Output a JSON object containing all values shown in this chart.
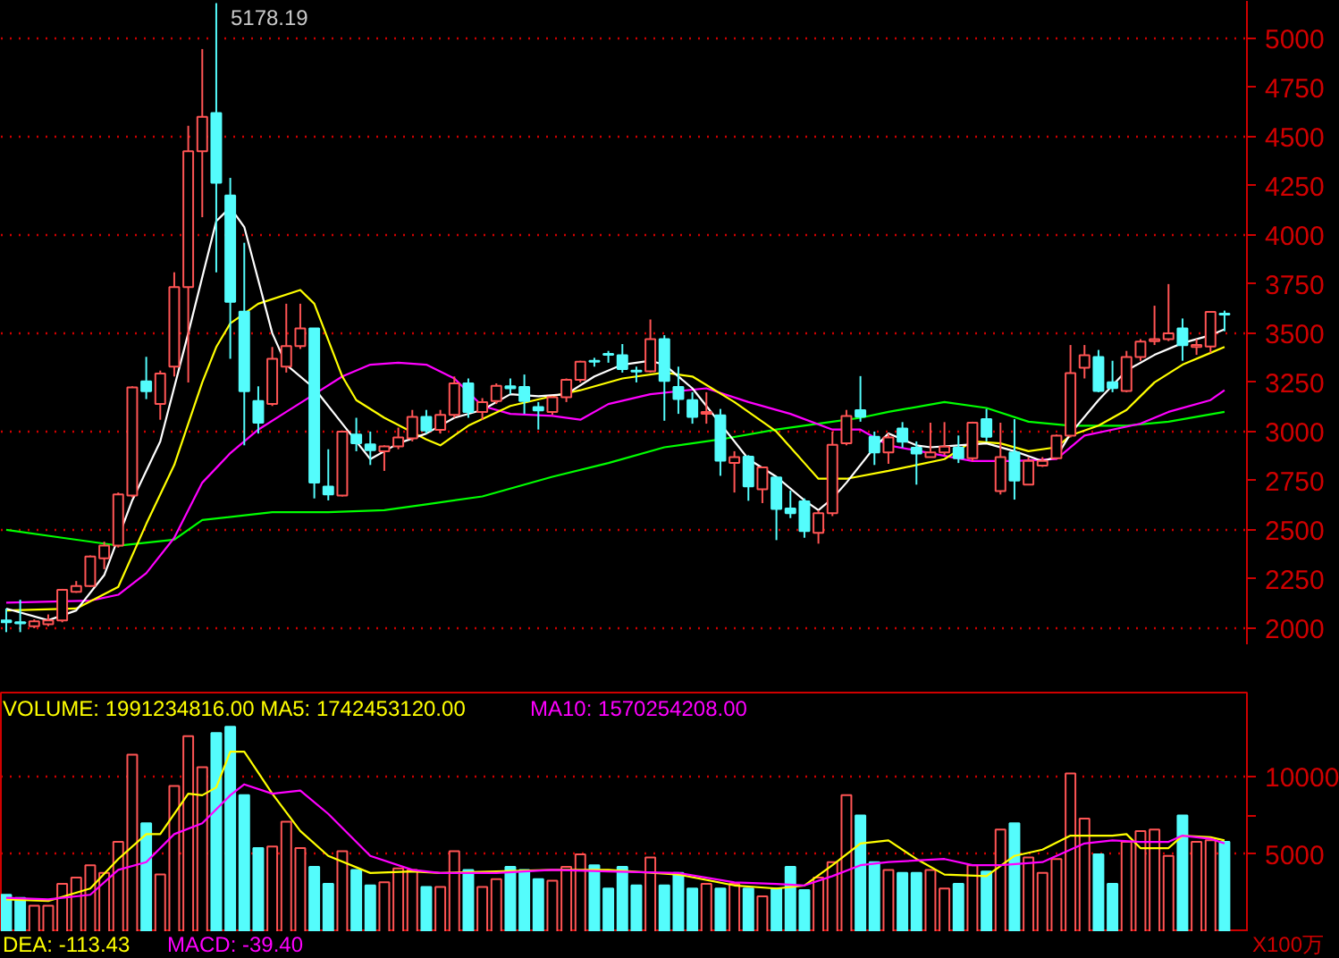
{
  "chart_data": [
    {
      "type": "candlestick",
      "categories": [
        null,
        null,
        null,
        null,
        null,
        null,
        null,
        null,
        null,
        null,
        null,
        null,
        null,
        null,
        null,
        null,
        null,
        null,
        null,
        null,
        null,
        null,
        null,
        null,
        null,
        null,
        null,
        null,
        null,
        null,
        null,
        null,
        null,
        null,
        null,
        null,
        null,
        null,
        null,
        null,
        null,
        null,
        null,
        null,
        null,
        null,
        null,
        null,
        null,
        null,
        null,
        null,
        null,
        null,
        null,
        null,
        null,
        null,
        null,
        null,
        null,
        null,
        null,
        null,
        null,
        null,
        null,
        null,
        null,
        null,
        null,
        null,
        null,
        null,
        null,
        null,
        null,
        null,
        null,
        null,
        null,
        null,
        null,
        null,
        null,
        null,
        null,
        null
      ],
      "ohlc": [
        [
          2040,
          2100,
          1980,
          2030
        ],
        [
          2030,
          2145,
          1980,
          2025
        ],
        [
          2010,
          2045,
          2000,
          2035
        ],
        [
          2020,
          2070,
          2010,
          2040
        ],
        [
          2040,
          2200,
          2030,
          2195
        ],
        [
          2185,
          2240,
          2180,
          2215
        ],
        [
          2215,
          2370,
          2210,
          2365
        ],
        [
          2355,
          2440,
          2300,
          2420
        ],
        [
          2420,
          2690,
          2410,
          2680
        ],
        [
          2675,
          3230,
          2665,
          3225
        ],
        [
          3255,
          3380,
          3165,
          3205
        ],
        [
          3140,
          3310,
          3060,
          3295
        ],
        [
          3330,
          3810,
          3280,
          3735
        ],
        [
          3735,
          4555,
          3250,
          4425
        ],
        [
          4425,
          4945,
          4090,
          4600
        ],
        [
          4620,
          5178.19,
          3810,
          4265
        ],
        [
          4200,
          4290,
          3370,
          3660
        ],
        [
          3610,
          3960,
          2930,
          3205
        ],
        [
          3155,
          3230,
          2990,
          3045
        ],
        [
          3140,
          3430,
          3130,
          3370
        ],
        [
          3330,
          3650,
          3300,
          3435
        ],
        [
          3435,
          3650,
          3420,
          3525
        ],
        [
          3525,
          3525,
          2660,
          2740
        ],
        [
          2720,
          2910,
          2650,
          2680
        ],
        [
          2675,
          3005,
          2670,
          3000
        ],
        [
          2985,
          3070,
          2900,
          2940
        ],
        [
          2935,
          3000,
          2830,
          2905
        ],
        [
          2900,
          2930,
          2800,
          2925
        ],
        [
          2925,
          3020,
          2910,
          2970
        ],
        [
          2965,
          3110,
          2950,
          3075
        ],
        [
          3075,
          3110,
          2990,
          3005
        ],
        [
          3009,
          3110,
          2990,
          3085
        ],
        [
          3085,
          3280,
          3070,
          3245
        ],
        [
          3245,
          3270,
          3070,
          3100
        ],
        [
          3100,
          3170,
          3060,
          3150
        ],
        [
          3155,
          3245,
          3140,
          3233
        ],
        [
          3230,
          3270,
          3190,
          3220
        ],
        [
          3227,
          3290,
          3090,
          3155
        ],
        [
          3124,
          3150,
          3010,
          3108
        ],
        [
          3100,
          3180,
          3085,
          3175
        ],
        [
          3175,
          3270,
          3150,
          3263
        ],
        [
          3263,
          3360,
          3250,
          3355
        ],
        [
          3360,
          3375,
          3330,
          3355
        ],
        [
          3395,
          3410,
          3350,
          3390
        ],
        [
          3388,
          3445,
          3300,
          3318
        ],
        [
          3310,
          3330,
          3250,
          3305
        ],
        [
          3306,
          3570,
          3300,
          3470
        ],
        [
          3470,
          3490,
          3055,
          3257
        ],
        [
          3227,
          3330,
          3090,
          3166
        ],
        [
          3160,
          3200,
          3040,
          3075
        ],
        [
          3090,
          3200,
          3040,
          3100
        ],
        [
          3082,
          3115,
          2775,
          2852
        ],
        [
          2840,
          2900,
          2690,
          2870
        ],
        [
          2872,
          2880,
          2648,
          2721
        ],
        [
          2706,
          2818,
          2636,
          2818
        ],
        [
          2767,
          2767,
          2448,
          2606
        ],
        [
          2609,
          2700,
          2560,
          2585
        ],
        [
          2645,
          2660,
          2460,
          2494
        ],
        [
          2485,
          2600,
          2430,
          2585
        ],
        [
          2585,
          3000,
          2570,
          2933
        ],
        [
          2940,
          3110,
          2930,
          3079
        ],
        [
          3109,
          3282,
          3050,
          3076
        ],
        [
          2973,
          3000,
          2830,
          2894
        ],
        [
          2894,
          2990,
          2836,
          2970
        ],
        [
          3015,
          3048,
          2918,
          2948
        ],
        [
          2918,
          2950,
          2730,
          2888
        ],
        [
          2870,
          3045,
          2870,
          2894
        ],
        [
          2894,
          3048,
          2880,
          2924
        ],
        [
          2918,
          2980,
          2840,
          2864
        ],
        [
          2864,
          3050,
          2850,
          3045
        ],
        [
          3063,
          3115,
          2950,
          2973
        ],
        [
          2697,
          3045,
          2680,
          2870
        ],
        [
          2894,
          3063,
          2654,
          2751
        ],
        [
          2730,
          2870,
          2727,
          2851
        ],
        [
          2827,
          2870,
          2820,
          2851
        ],
        [
          2864,
          2985,
          2860,
          2979
        ],
        [
          2979,
          3440,
          2970,
          3297
        ],
        [
          3324,
          3440,
          3270,
          3388
        ],
        [
          3379,
          3415,
          3200,
          3206
        ],
        [
          3251,
          3360,
          3200,
          3221
        ],
        [
          3206,
          3410,
          3200,
          3379
        ],
        [
          3379,
          3470,
          3360,
          3457
        ],
        [
          3460,
          3640,
          3440,
          3470
        ],
        [
          3470,
          3750,
          3460,
          3500
        ],
        [
          3524,
          3575,
          3360,
          3439
        ],
        [
          3430,
          3470,
          3390,
          3440
        ],
        [
          3433,
          3609,
          3400,
          3609
        ],
        [
          3600,
          3615,
          3510,
          3595
        ]
      ],
      "colors": [
        "#54fcfc",
        "#54fcfc",
        "#ff5454",
        "#ff5454",
        "#ff5454",
        "#ff5454",
        "#ff5454",
        "#ff5454",
        "#ff5454",
        "#ff5454",
        "#54fcfc",
        "#ff5454",
        "#ff5454",
        "#ff5454",
        "#ff5454",
        "#54fcfc",
        "#54fcfc",
        "#54fcfc",
        "#54fcfc",
        "#ff5454",
        "#ff5454",
        "#ff5454",
        "#54fcfc",
        "#54fcfc",
        "#ff5454",
        "#54fcfc",
        "#54fcfc",
        "#ff5454",
        "#ff5454",
        "#ff5454",
        "#54fcfc",
        "#ff5454",
        "#ff5454",
        "#54fcfc",
        "#ff5454",
        "#ff5454",
        "#54fcfc",
        "#54fcfc",
        "#54fcfc",
        "#ff5454",
        "#ff5454",
        "#ff5454",
        "#54fcfc",
        "#54fcfc",
        "#54fcfc",
        "#54fcfc",
        "#ff5454",
        "#54fcfc",
        "#54fcfc",
        "#54fcfc",
        "#ff5454",
        "#54fcfc",
        "#ff5454",
        "#54fcfc",
        "#ff5454",
        "#54fcfc",
        "#54fcfc",
        "#54fcfc",
        "#ff5454",
        "#ff5454",
        "#ff5454",
        "#54fcfc",
        "#54fcfc",
        "#ff5454",
        "#54fcfc",
        "#54fcfc",
        "#ff5454",
        "#ff5454",
        "#54fcfc",
        "#ff5454",
        "#54fcfc",
        "#ff5454",
        "#54fcfc",
        "#ff5454",
        "#ff5454",
        "#ff5454",
        "#ff5454",
        "#ff5454",
        "#54fcfc",
        "#54fcfc",
        "#ff5454",
        "#ff5454",
        "#ff5454",
        "#ff5454",
        "#54fcfc",
        "#ff5454",
        "#ff5454",
        "#54fcfc"
      ],
      "series": [
        {
          "type": "line",
          "color": "#00ff00",
          "values": [
            2500,
            null,
            null,
            null,
            2460,
            null,
            null,
            null,
            2420,
            null,
            null,
            null,
            2450,
            null,
            2550,
            null,
            null,
            null,
            null,
            2590,
            null,
            null,
            null,
            2590,
            null,
            null,
            null,
            2600,
            null,
            null,
            2630,
            null,
            null,
            null,
            2670,
            null,
            null,
            null,
            null,
            2770,
            null,
            null,
            null,
            2840,
            null,
            null,
            null,
            2920,
            null,
            null,
            null,
            2960,
            null,
            null,
            null,
            3010,
            null,
            null,
            null,
            3050,
            null,
            3070,
            null,
            3100,
            null,
            null,
            null,
            3150,
            null,
            null,
            3120,
            null,
            null,
            3050,
            null,
            null,
            3030,
            null,
            null,
            null,
            3030,
            null,
            null,
            3050,
            null,
            null,
            null,
            3100
          ]
        },
        {
          "type": "line",
          "color": "#ff00ff",
          "values": [
            2130,
            null,
            null,
            null,
            null,
            null,
            2140,
            null,
            2170,
            null,
            2280,
            null,
            2460,
            null,
            2740,
            null,
            2890,
            null,
            3010,
            null,
            3100,
            null,
            3190,
            null,
            3280,
            null,
            3340,
            null,
            3350,
            null,
            3340,
            null,
            3270,
            null,
            3130,
            null,
            3090,
            null,
            null,
            3080,
            null,
            3060,
            null,
            3140,
            null,
            null,
            3190,
            null,
            null,
            null,
            3220,
            null,
            null,
            3150,
            null,
            null,
            3090,
            null,
            null,
            3010,
            null,
            3010,
            null,
            2930,
            null,
            null,
            2890,
            null,
            null,
            2850,
            null,
            null,
            2850,
            null,
            null,
            2860,
            null,
            2980,
            null,
            3010,
            null,
            3040,
            null,
            3100,
            null,
            null,
            3160,
            3210
          ]
        },
        {
          "type": "line",
          "color": "#ffff00",
          "values": [
            2090,
            null,
            null,
            null,
            null,
            2100,
            null,
            null,
            2210,
            null,
            2530,
            null,
            2830,
            null,
            3250,
            3430,
            3550,
            null,
            3650,
            null,
            null,
            3720,
            3650,
            null,
            3280,
            3160,
            null,
            3070,
            null,
            null,
            2960,
            2930,
            null,
            3030,
            null,
            null,
            3130,
            null,
            null,
            3180,
            null,
            3210,
            null,
            null,
            3270,
            null,
            null,
            3300,
            null,
            3280,
            null,
            null,
            3150,
            null,
            null,
            3000,
            null,
            2840,
            2760,
            null,
            2760,
            null,
            null,
            2800,
            null,
            2830,
            null,
            2860,
            null,
            2950,
            null,
            2940,
            null,
            2900,
            null,
            2920,
            2980,
            null,
            3030,
            null,
            3110,
            null,
            3250,
            null,
            3340,
            null,
            3400,
            3430
          ]
        },
        {
          "type": "line",
          "color": "#ffffff",
          "values": [
            2100,
            null,
            null,
            2040,
            null,
            2090,
            null,
            2270,
            null,
            2650,
            null,
            2950,
            null,
            3500,
            null,
            4070,
            4140,
            4040,
            null,
            3500,
            3340,
            null,
            3220,
            null,
            3040,
            null,
            2860,
            null,
            2940,
            null,
            2990,
            null,
            3070,
            null,
            3110,
            null,
            3190,
            null,
            3180,
            null,
            3190,
            null,
            3280,
            null,
            3340,
            null,
            3360,
            3340,
            null,
            3220,
            null,
            3040,
            null,
            2860,
            null,
            2770,
            null,
            2650,
            2600,
            2660,
            2740,
            null,
            2920,
            2990,
            null,
            2930,
            2920,
            null,
            2930,
            null,
            2940,
            null,
            2900,
            null,
            2850,
            2870,
            2990,
            null,
            3160,
            null,
            3310,
            null,
            3390,
            null,
            3450,
            null,
            3490,
            3520
          ]
        }
      ],
      "ylim": [
        1918,
        5190
      ],
      "yticks": [
        2000,
        2250,
        2500,
        2750,
        3000,
        3250,
        3500,
        3750,
        4000,
        4250,
        4500,
        4750,
        5000
      ],
      "grid": "y",
      "tick_labels": "y",
      "annotations": [
        "5178.19"
      ]
    },
    {
      "type": "bar",
      "categories": [
        null,
        null,
        null,
        null,
        null,
        null,
        null,
        null,
        null,
        null,
        null,
        null,
        null,
        null,
        null,
        null,
        null,
        null,
        null,
        null,
        null,
        null,
        null,
        null,
        null,
        null,
        null,
        null,
        null,
        null,
        null,
        null,
        null,
        null,
        null,
        null,
        null,
        null,
        null,
        null,
        null,
        null,
        null,
        null,
        null,
        null,
        null,
        null,
        null,
        null,
        null,
        null,
        null,
        null,
        null,
        null,
        null,
        null,
        null,
        null,
        null,
        null,
        null,
        null,
        null,
        null,
        null,
        null,
        null,
        null,
        null,
        null,
        null,
        null,
        null,
        null,
        null,
        null,
        null,
        null,
        null,
        null,
        null,
        null,
        null,
        null,
        null,
        null
      ],
      "values": [
        2400,
        2200,
        1700,
        1700,
        3100,
        3500,
        4300,
        3800,
        5800,
        11400,
        7000,
        3700,
        9400,
        12600,
        10600,
        12800,
        13200,
        8800,
        5400,
        5500,
        7100,
        5400,
        4200,
        3100,
        5200,
        4000,
        3000,
        3200,
        4100,
        4000,
        2900,
        2900,
        5200,
        4000,
        2900,
        3400,
        4200,
        4000,
        3400,
        3300,
        4200,
        5000,
        4300,
        2800,
        4200,
        3000,
        4800,
        3000,
        3800,
        2800,
        3100,
        2800,
        3100,
        2800,
        2300,
        2800,
        4200,
        2700,
        3500,
        4500,
        8800,
        7500,
        4500,
        4000,
        3800,
        3800,
        4000,
        2800,
        3100,
        4300,
        3900,
        6600,
        7000,
        4800,
        3800,
        4700,
        10200,
        7300,
        5000,
        3100,
        5800,
        6500,
        6600,
        4900,
        7500,
        5800,
        5900,
        5800
      ],
      "colors": [
        "#54fcfc",
        "#54fcfc",
        "#ff5454",
        "#ff5454",
        "#ff5454",
        "#ff5454",
        "#ff5454",
        "#ff5454",
        "#ff5454",
        "#ff5454",
        "#54fcfc",
        "#ff5454",
        "#ff5454",
        "#ff5454",
        "#ff5454",
        "#54fcfc",
        "#54fcfc",
        "#54fcfc",
        "#54fcfc",
        "#ff5454",
        "#ff5454",
        "#ff5454",
        "#54fcfc",
        "#54fcfc",
        "#ff5454",
        "#54fcfc",
        "#54fcfc",
        "#ff5454",
        "#ff5454",
        "#ff5454",
        "#54fcfc",
        "#ff5454",
        "#ff5454",
        "#54fcfc",
        "#ff5454",
        "#ff5454",
        "#54fcfc",
        "#54fcfc",
        "#54fcfc",
        "#ff5454",
        "#ff5454",
        "#ff5454",
        "#54fcfc",
        "#54fcfc",
        "#54fcfc",
        "#54fcfc",
        "#ff5454",
        "#54fcfc",
        "#54fcfc",
        "#54fcfc",
        "#ff5454",
        "#54fcfc",
        "#ff5454",
        "#54fcfc",
        "#ff5454",
        "#54fcfc",
        "#54fcfc",
        "#54fcfc",
        "#ff5454",
        "#ff5454",
        "#ff5454",
        "#54fcfc",
        "#54fcfc",
        "#ff5454",
        "#54fcfc",
        "#54fcfc",
        "#ff5454",
        "#ff5454",
        "#54fcfc",
        "#ff5454",
        "#54fcfc",
        "#ff5454",
        "#54fcfc",
        "#ff5454",
        "#ff5454",
        "#ff5454",
        "#ff5454",
        "#ff5454",
        "#54fcfc",
        "#54fcfc",
        "#ff5454",
        "#ff5454",
        "#ff5454",
        "#ff5454",
        "#54fcfc",
        "#ff5454",
        "#ff5454",
        "#54fcfc"
      ],
      "series": [
        {
          "type": "line",
          "color": "#ffff00",
          "values": [
            2100,
            null,
            null,
            2000,
            null,
            null,
            2800,
            null,
            4700,
            null,
            6300,
            6300,
            null,
            8900,
            8800,
            9300,
            11600,
            11600,
            null,
            8900,
            null,
            6500,
            null,
            4900,
            null,
            null,
            3800,
            null,
            null,
            3900,
            null,
            3800,
            null,
            null,
            null,
            3900,
            null,
            null,
            null,
            4000,
            null,
            null,
            null,
            4000,
            null,
            null,
            null,
            null,
            3700,
            null,
            null,
            null,
            3000,
            null,
            null,
            2800,
            null,
            3000,
            null,
            4300,
            null,
            5700,
            null,
            5900,
            null,
            4700,
            null,
            3700,
            null,
            null,
            3600,
            null,
            4900,
            null,
            5300,
            null,
            6200,
            null,
            null,
            6200,
            6300,
            5400,
            null,
            5400,
            6200,
            null,
            6100,
            5900
          ]
        },
        {
          "type": "line",
          "color": "#ff00ff",
          "values": [
            2200,
            null,
            null,
            2100,
            null,
            null,
            2400,
            null,
            4000,
            null,
            4500,
            null,
            6300,
            null,
            7000,
            null,
            8800,
            9500,
            null,
            8900,
            null,
            9100,
            null,
            7600,
            null,
            null,
            4900,
            null,
            null,
            4000,
            null,
            3800,
            null,
            null,
            null,
            3800,
            null,
            null,
            null,
            4000,
            null,
            null,
            null,
            3900,
            null,
            null,
            null,
            null,
            3800,
            null,
            null,
            null,
            3200,
            null,
            null,
            3100,
            null,
            3000,
            null,
            3600,
            null,
            4300,
            null,
            4500,
            null,
            null,
            null,
            4700,
            null,
            4300,
            null,
            4300,
            null,
            null,
            4500,
            null,
            5300,
            5700,
            null,
            5900,
            null,
            5800,
            null,
            5800,
            6200,
            null,
            6000,
            5700
          ]
        }
      ],
      "ylim": [
        0,
        15400
      ],
      "yticks": [
        5000,
        {
          "value": 7500,
          "label": null
        },
        10000
      ],
      "grid": "y",
      "tick_labels": "y",
      "ylabel": "X100万",
      "annotations": [
        "VOLUME: 1991234816.00  MA5: 1742453120.00",
        "MA10: 1570254208.00",
        "DEA: -113.43",
        "MACD: -39.40"
      ]
    }
  ]
}
